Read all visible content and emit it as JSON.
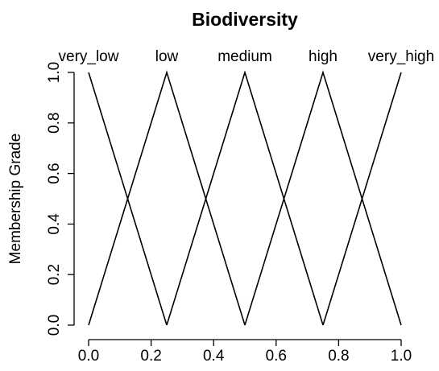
{
  "chart_data": {
    "type": "line",
    "title": "Biodiversity",
    "y_label": "Membership Grade",
    "series": [
      {
        "name": "very_low",
        "color": "#000000",
        "x": [
          0,
          0.25
        ],
        "values": [
          1,
          0
        ]
      },
      {
        "name": "low",
        "color": "#000000",
        "x": [
          0,
          0.25,
          0.5
        ],
        "values": [
          0,
          1,
          0
        ]
      },
      {
        "name": "medium",
        "color": "#000000",
        "x": [
          0.25,
          0.5,
          0.75
        ],
        "values": [
          0,
          1,
          0
        ]
      },
      {
        "name": "high",
        "color": "#000000",
        "x": [
          0.5,
          0.75,
          1
        ],
        "values": [
          0,
          1,
          0
        ]
      },
      {
        "name": "very_high",
        "color": "#000000",
        "x": [
          0.75,
          1
        ],
        "values": [
          0,
          1
        ]
      }
    ],
    "xlim": [
      0,
      1
    ],
    "ylim": [
      0,
      1
    ],
    "xticks": [
      {
        "value": 0,
        "label": "0.0"
      },
      0.2,
      0.4,
      0.6,
      0.8,
      {
        "value": 1,
        "label": "1.0"
      }
    ],
    "yticks": [
      {
        "value": 0,
        "label": "0.0"
      },
      0.2,
      0.4,
      0.6,
      0.8,
      {
        "value": 1,
        "label": "1.0"
      }
    ]
  }
}
